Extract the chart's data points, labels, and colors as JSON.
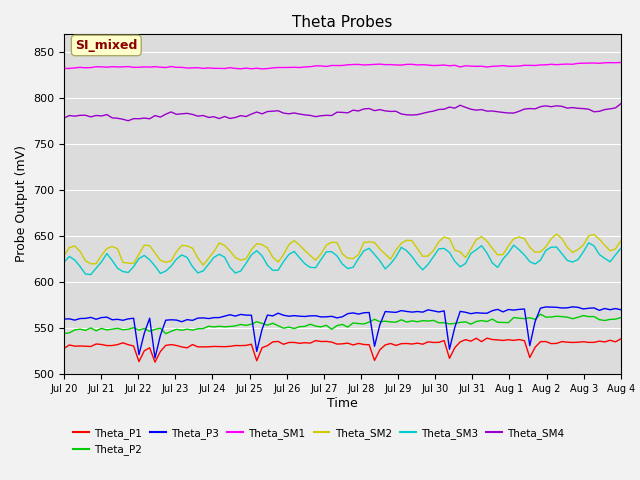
{
  "title": "Theta Probes",
  "xlabel": "Time",
  "ylabel": "Probe Output (mV)",
  "ylim": [
    500,
    870
  ],
  "yticks": [
    500,
    550,
    600,
    650,
    700,
    750,
    800,
    850
  ],
  "annotation_text": "SI_mixed",
  "annotation_color": "#8B0000",
  "annotation_bg": "#FFFFCC",
  "bg_color": "#DCDCDC",
  "fig_bg_color": "#F2F2F2",
  "series": {
    "Theta_P1": {
      "color": "#FF0000"
    },
    "Theta_P2": {
      "color": "#00CC00"
    },
    "Theta_P3": {
      "color": "#0000FF"
    },
    "Theta_SM1": {
      "color": "#FF00FF"
    },
    "Theta_SM2": {
      "color": "#CCCC00"
    },
    "Theta_SM3": {
      "color": "#00CCCC"
    },
    "Theta_SM4": {
      "color": "#9900CC"
    }
  },
  "xtick_labels": [
    "Jul 20",
    "Jul 21",
    "Jul 22",
    "Jul 23",
    "Jul 24",
    "Jul 25",
    "Jul 26",
    "Jul 27",
    "Jul 28",
    "Jul 29",
    "Jul 30",
    "Jul 31",
    "Aug 1",
    "Aug 2",
    "Aug 3",
    "Aug 4"
  ],
  "legend_order": [
    "Theta_P1",
    "Theta_P2",
    "Theta_P3",
    "Theta_SM1",
    "Theta_SM2",
    "Theta_SM3",
    "Theta_SM4"
  ]
}
